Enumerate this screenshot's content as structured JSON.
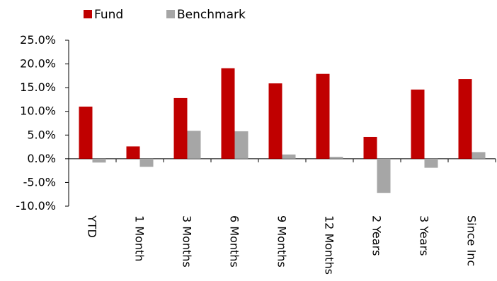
{
  "chart_data": {
    "type": "bar",
    "title": "",
    "xlabel": "",
    "ylabel": "",
    "categories": [
      "YTD",
      "1 Month",
      "3 Months",
      "6 Months",
      "9 Months",
      "12 Months",
      "2 Years",
      "3 Years",
      "Since Inc"
    ],
    "series": [
      {
        "name": "Fund",
        "color": "#c00000",
        "values": [
          11.0,
          2.6,
          12.8,
          19.1,
          15.9,
          17.9,
          4.6,
          14.6,
          16.8
        ]
      },
      {
        "name": "Benchmark",
        "color": "#a6a6a6",
        "values": [
          -0.8,
          -1.7,
          5.9,
          5.8,
          0.9,
          0.4,
          -7.2,
          -1.9,
          1.4
        ]
      }
    ],
    "ylim": [
      -10,
      25
    ],
    "yticks": [
      25,
      20,
      15,
      10,
      5,
      0,
      -5,
      -10
    ],
    "ytick_labels": [
      "25.0%",
      "20.0%",
      "15.0%",
      "10.0%",
      "5.0%",
      "0.0%",
      "-5.0%",
      "-10.0%"
    ],
    "grid": false,
    "legend_position": "top-left"
  }
}
